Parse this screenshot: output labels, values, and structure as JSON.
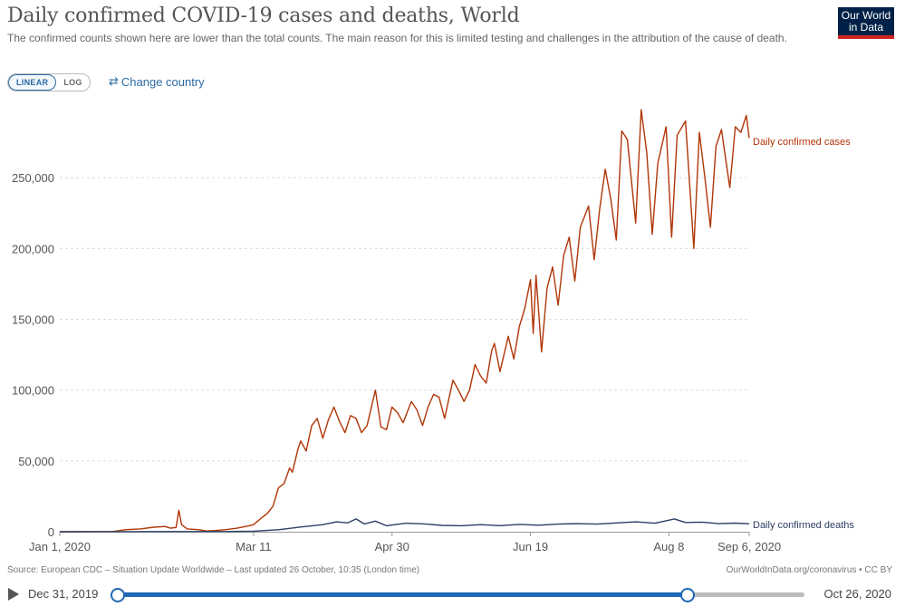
{
  "header": {
    "title": "Daily confirmed COVID-19 cases and deaths, World",
    "subtitle": "The confirmed counts shown here are lower than the total counts. The main reason for this is limited testing and challenges in the attribution of the cause of death.",
    "logo_line1": "Our World",
    "logo_line2": "in Data"
  },
  "controls": {
    "linear_label": "LINEAR",
    "log_label": "LOG",
    "change_country_label": "Change country"
  },
  "footer": {
    "source": "Source: European CDC – Situation Update Worldwide – Last updated 26 October, 10:35 (London time)",
    "link": "OurWorldInData.org/coronavirus • CC BY"
  },
  "timeline": {
    "start_label": "Dec 31, 2019",
    "end_label": "Oct 26, 2020",
    "selection_fraction": [
      0.0,
      0.83
    ]
  },
  "colors": {
    "cases": "#b13507",
    "deaths": "#2d3e63",
    "accent": "#1f67b4"
  },
  "chart_data": {
    "type": "line",
    "ylim": [
      0,
      300000
    ],
    "yticks": [
      0,
      50000,
      100000,
      150000,
      200000,
      250000
    ],
    "ytick_labels": [
      "0",
      "50,000",
      "100,000",
      "150,000",
      "200,000",
      "250,000"
    ],
    "xlim": [
      "2020-01-01",
      "2020-09-06"
    ],
    "xticks": [
      "2020-01-01",
      "2020-03-11",
      "2020-04-30",
      "2020-06-19",
      "2020-08-08",
      "2020-09-06"
    ],
    "xtick_labels": [
      "Jan 1, 2020",
      "Mar 11",
      "Apr 30",
      "Jun 19",
      "Aug 8",
      "Sep 6, 2020"
    ],
    "grid": "horizontal dashed",
    "series": [
      {
        "name": "Daily confirmed cases",
        "color": "#b13507",
        "points": [
          [
            "2020-01-01",
            0
          ],
          [
            "2020-01-20",
            100
          ],
          [
            "2020-01-25",
            1500
          ],
          [
            "2020-01-30",
            2000
          ],
          [
            "2020-02-04",
            3200
          ],
          [
            "2020-02-08",
            3700
          ],
          [
            "2020-02-10",
            2500
          ],
          [
            "2020-02-12",
            3000
          ],
          [
            "2020-02-13",
            15100
          ],
          [
            "2020-02-14",
            5000
          ],
          [
            "2020-02-16",
            2000
          ],
          [
            "2020-02-20",
            1500
          ],
          [
            "2020-02-23",
            500
          ],
          [
            "2020-02-26",
            800
          ],
          [
            "2020-03-01",
            1500
          ],
          [
            "2020-03-05",
            2500
          ],
          [
            "2020-03-09",
            4000
          ],
          [
            "2020-03-11",
            5000
          ],
          [
            "2020-03-14",
            10000
          ],
          [
            "2020-03-16",
            13000
          ],
          [
            "2020-03-18",
            18000
          ],
          [
            "2020-03-20",
            31000
          ],
          [
            "2020-03-22",
            34000
          ],
          [
            "2020-03-24",
            45000
          ],
          [
            "2020-03-25",
            42000
          ],
          [
            "2020-03-27",
            58000
          ],
          [
            "2020-03-28",
            64000
          ],
          [
            "2020-03-30",
            57000
          ],
          [
            "2020-04-01",
            75000
          ],
          [
            "2020-04-03",
            80000
          ],
          [
            "2020-04-05",
            66000
          ],
          [
            "2020-04-07",
            79000
          ],
          [
            "2020-04-09",
            88000
          ],
          [
            "2020-04-11",
            78000
          ],
          [
            "2020-04-13",
            70000
          ],
          [
            "2020-04-15",
            82000
          ],
          [
            "2020-04-17",
            80000
          ],
          [
            "2020-04-19",
            70000
          ],
          [
            "2020-04-21",
            75000
          ],
          [
            "2020-04-24",
            100000
          ],
          [
            "2020-04-26",
            74000
          ],
          [
            "2020-04-28",
            72000
          ],
          [
            "2020-04-30",
            88000
          ],
          [
            "2020-05-02",
            84000
          ],
          [
            "2020-05-04",
            77000
          ],
          [
            "2020-05-07",
            92000
          ],
          [
            "2020-05-09",
            86000
          ],
          [
            "2020-05-11",
            75000
          ],
          [
            "2020-05-13",
            88000
          ],
          [
            "2020-05-15",
            97000
          ],
          [
            "2020-05-17",
            95000
          ],
          [
            "2020-05-19",
            80000
          ],
          [
            "2020-05-22",
            107000
          ],
          [
            "2020-05-24",
            100000
          ],
          [
            "2020-05-26",
            92000
          ],
          [
            "2020-05-28",
            100000
          ],
          [
            "2020-05-30",
            118000
          ],
          [
            "2020-06-01",
            110000
          ],
          [
            "2020-06-03",
            105000
          ],
          [
            "2020-06-05",
            128000
          ],
          [
            "2020-06-06",
            133000
          ],
          [
            "2020-06-08",
            113000
          ],
          [
            "2020-06-11",
            138000
          ],
          [
            "2020-06-13",
            122000
          ],
          [
            "2020-06-15",
            145000
          ],
          [
            "2020-06-17",
            158000
          ],
          [
            "2020-06-19",
            178000
          ],
          [
            "2020-06-20",
            140000
          ],
          [
            "2020-06-21",
            181000
          ],
          [
            "2020-06-23",
            127000
          ],
          [
            "2020-06-25",
            172000
          ],
          [
            "2020-06-27",
            187000
          ],
          [
            "2020-06-29",
            160000
          ],
          [
            "2020-07-01",
            195000
          ],
          [
            "2020-07-03",
            208000
          ],
          [
            "2020-07-05",
            177000
          ],
          [
            "2020-07-07",
            215000
          ],
          [
            "2020-07-10",
            230000
          ],
          [
            "2020-07-12",
            192000
          ],
          [
            "2020-07-14",
            228000
          ],
          [
            "2020-07-16",
            256000
          ],
          [
            "2020-07-18",
            235000
          ],
          [
            "2020-07-20",
            206000
          ],
          [
            "2020-07-22",
            283000
          ],
          [
            "2020-07-24",
            277000
          ],
          [
            "2020-07-27",
            218000
          ],
          [
            "2020-07-29",
            298000
          ],
          [
            "2020-07-31",
            268000
          ],
          [
            "2020-08-02",
            210000
          ],
          [
            "2020-08-04",
            260000
          ],
          [
            "2020-08-07",
            286000
          ],
          [
            "2020-08-09",
            208000
          ],
          [
            "2020-08-11",
            280000
          ],
          [
            "2020-08-14",
            290000
          ],
          [
            "2020-08-17",
            200000
          ],
          [
            "2020-08-19",
            282000
          ],
          [
            "2020-08-21",
            250000
          ],
          [
            "2020-08-23",
            215000
          ],
          [
            "2020-08-25",
            272000
          ],
          [
            "2020-08-27",
            284000
          ],
          [
            "2020-08-30",
            243000
          ],
          [
            "2020-09-01",
            286000
          ],
          [
            "2020-09-03",
            282000
          ],
          [
            "2020-09-05",
            294000
          ],
          [
            "2020-09-06",
            278000
          ]
        ]
      },
      {
        "name": "Daily confirmed deaths",
        "color": "#2d3e63",
        "points": [
          [
            "2020-01-01",
            0
          ],
          [
            "2020-02-10",
            100
          ],
          [
            "2020-03-01",
            150
          ],
          [
            "2020-03-11",
            400
          ],
          [
            "2020-03-20",
            1400
          ],
          [
            "2020-03-28",
            3300
          ],
          [
            "2020-04-05",
            5000
          ],
          [
            "2020-04-10",
            7000
          ],
          [
            "2020-04-14",
            6300
          ],
          [
            "2020-04-17",
            9000
          ],
          [
            "2020-04-20",
            5500
          ],
          [
            "2020-04-24",
            7500
          ],
          [
            "2020-04-28",
            4200
          ],
          [
            "2020-05-05",
            6000
          ],
          [
            "2020-05-12",
            5500
          ],
          [
            "2020-05-18",
            4500
          ],
          [
            "2020-05-25",
            4200
          ],
          [
            "2020-06-01",
            5000
          ],
          [
            "2020-06-08",
            4300
          ],
          [
            "2020-06-15",
            5200
          ],
          [
            "2020-06-22",
            4600
          ],
          [
            "2020-06-29",
            5400
          ],
          [
            "2020-07-06",
            5700
          ],
          [
            "2020-07-13",
            5400
          ],
          [
            "2020-07-20",
            6200
          ],
          [
            "2020-07-27",
            7000
          ],
          [
            "2020-08-03",
            6000
          ],
          [
            "2020-08-10",
            9000
          ],
          [
            "2020-08-14",
            6500
          ],
          [
            "2020-08-20",
            6800
          ],
          [
            "2020-08-26",
            5700
          ],
          [
            "2020-09-01",
            6100
          ],
          [
            "2020-09-06",
            5600
          ]
        ]
      }
    ]
  }
}
